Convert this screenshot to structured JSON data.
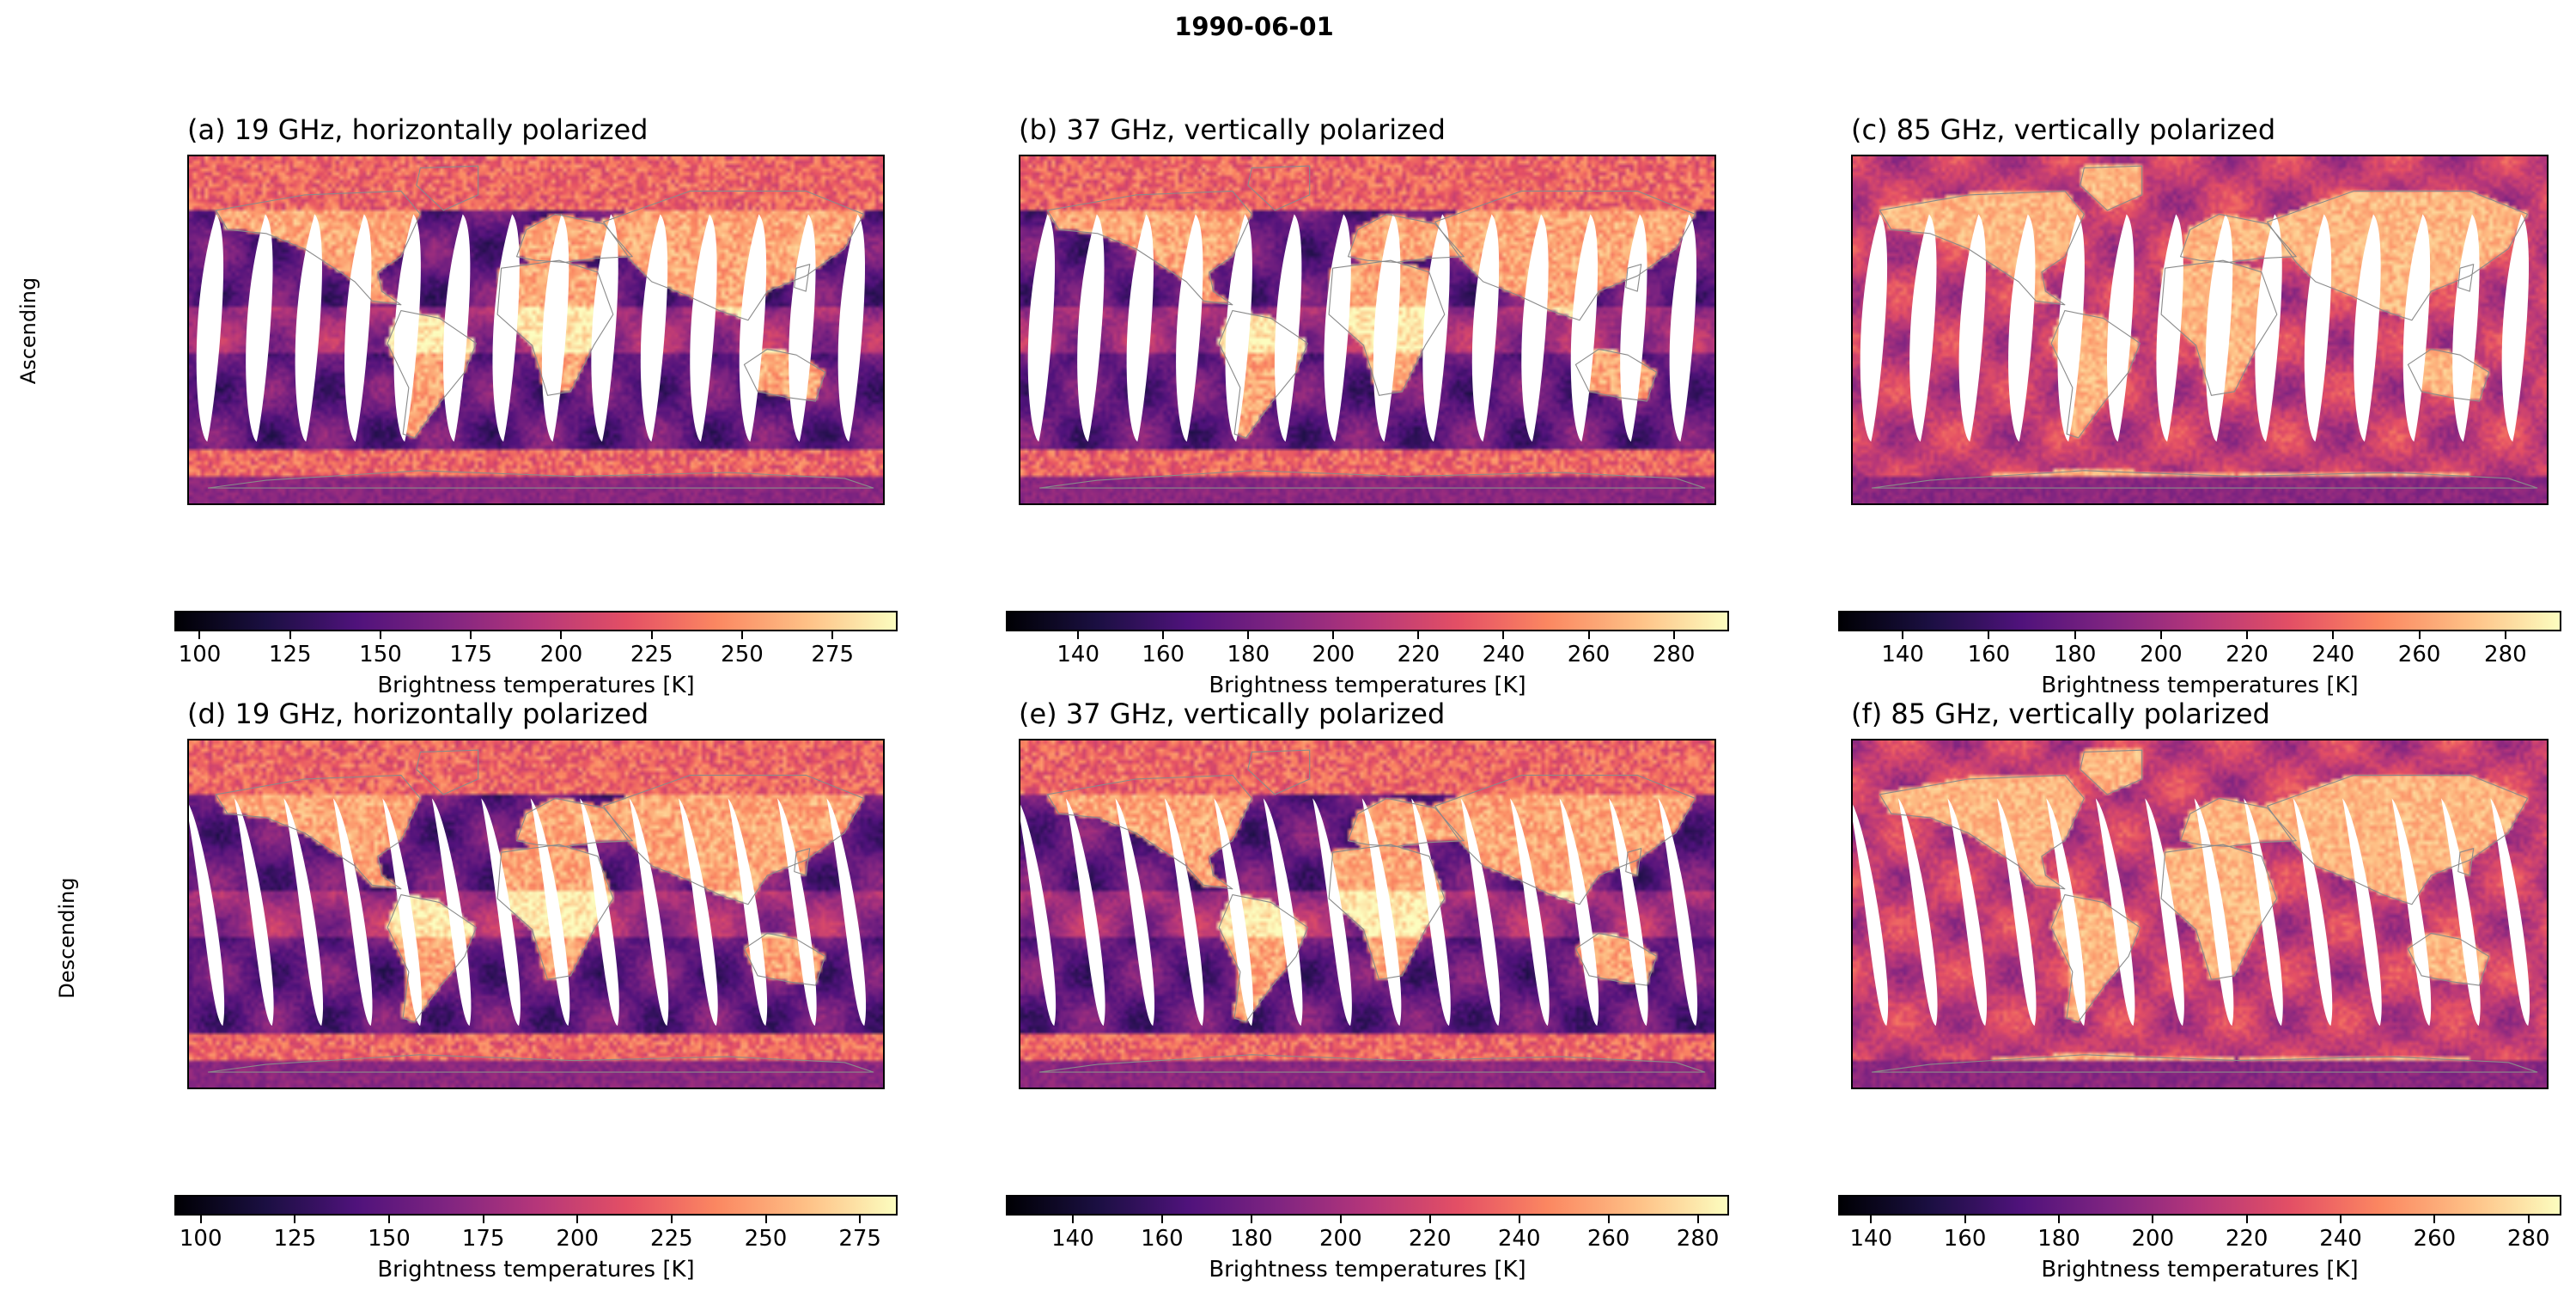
{
  "title": "1990-06-01",
  "row_labels": [
    "Ascending",
    "Descending"
  ],
  "colors": {
    "coast": "#8a8a8a",
    "cmap": "magma"
  },
  "chart_data": [
    {
      "type": "heatmap",
      "pass": "Ascending",
      "title": "(a) 19 GHz, horizontally polarized",
      "colorbar": {
        "label": "Brightness temperatures [K]",
        "range": [
          93,
          293
        ],
        "ticks": [
          100,
          125,
          150,
          175,
          200,
          225,
          250,
          275
        ]
      }
    },
    {
      "type": "heatmap",
      "pass": "Ascending",
      "title": "(b) 37 GHz, vertically polarized",
      "colorbar": {
        "label": "Brightness temperatures [K]",
        "range": [
          123,
          293
        ],
        "ticks": [
          140,
          160,
          180,
          200,
          220,
          240,
          260,
          280
        ]
      }
    },
    {
      "type": "heatmap",
      "pass": "Ascending",
      "title": "(c) 85 GHz, vertically polarized",
      "colorbar": {
        "label": "Brightness temperatures [K]",
        "range": [
          125,
          293
        ],
        "ticks": [
          140,
          160,
          180,
          200,
          220,
          240,
          260,
          280
        ]
      }
    },
    {
      "type": "heatmap",
      "pass": "Descending",
      "title": "(d) 19 GHz, horizontally polarized",
      "colorbar": {
        "label": "Brightness temperatures [K]",
        "range": [
          93,
          285
        ],
        "ticks": [
          100,
          125,
          150,
          175,
          200,
          225,
          250,
          275
        ]
      }
    },
    {
      "type": "heatmap",
      "pass": "Descending",
      "title": "(e) 37 GHz, vertically polarized",
      "colorbar": {
        "label": "Brightness temperatures [K]",
        "range": [
          125,
          287
        ],
        "ticks": [
          140,
          160,
          180,
          200,
          220,
          240,
          260,
          280
        ]
      }
    },
    {
      "type": "heatmap",
      "pass": "Descending",
      "title": "(f) 85 GHz, vertically polarized",
      "colorbar": {
        "label": "Brightness temperatures [K]",
        "range": [
          133,
          287
        ],
        "ticks": [
          140,
          160,
          180,
          200,
          220,
          240,
          260,
          280
        ]
      }
    }
  ]
}
